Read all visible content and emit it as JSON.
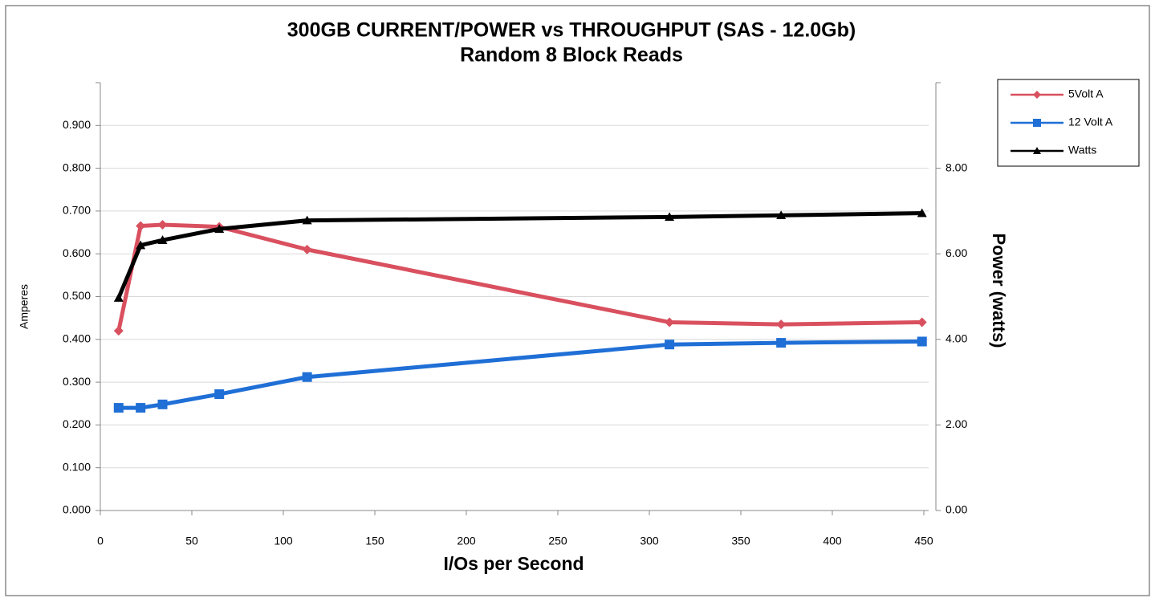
{
  "chart_data": {
    "type": "line",
    "title": "300GB CURRENT/POWER vs THROUGHPUT (SAS - 12.0Gb)",
    "subtitle": "Random 8 Block Reads",
    "x_label": "I/Os per Second",
    "y_label": "Amperes",
    "y2_label": "Power (watts)",
    "x": [
      10,
      22,
      34,
      65,
      113,
      311,
      372,
      449
    ],
    "series": [
      {
        "name": "5Volt A",
        "color": "#d9505f",
        "marker": "diamond",
        "values": [
          0.42,
          0.665,
          0.668,
          0.663,
          0.61,
          0.44,
          0.435,
          0.44
        ]
      },
      {
        "name": "12 Volt A",
        "color": "#1f6fd6",
        "marker": "square",
        "values": [
          0.24,
          0.24,
          0.248,
          0.272,
          0.312,
          0.388,
          0.392,
          0.395
        ]
      },
      {
        "name": "Watts",
        "color": "#000000",
        "marker": "triangle",
        "axis": "y2",
        "values": [
          4.97,
          6.2,
          6.32,
          6.58,
          6.78,
          6.86,
          6.9,
          6.95
        ]
      }
    ],
    "xlim": [
      0,
      450
    ],
    "xticks": [
      0,
      50,
      100,
      150,
      200,
      250,
      300,
      350,
      400,
      450
    ],
    "ylim": [
      0,
      1.0
    ],
    "yticks": [
      {
        "value": 0,
        "label": "0.000"
      },
      {
        "value": 0.1,
        "label": "0.100"
      },
      {
        "value": 0.2,
        "label": "0.200"
      },
      {
        "value": 0.3,
        "label": "0.300"
      },
      {
        "value": 0.4,
        "label": "0.400"
      },
      {
        "value": 0.5,
        "label": "0.500"
      },
      {
        "value": 0.6,
        "label": "0.600"
      },
      {
        "value": 0.7,
        "label": "0.700"
      },
      {
        "value": 0.8,
        "label": "0.800"
      },
      {
        "value": 0.9,
        "label": "0.900"
      }
    ],
    "y2lim": [
      0,
      10
    ],
    "y2ticks": [
      {
        "value": 0,
        "label": "0.00"
      },
      {
        "value": 2,
        "label": "2.00"
      },
      {
        "value": 4,
        "label": "4.00"
      },
      {
        "value": 6,
        "label": "6.00"
      },
      {
        "value": 8,
        "label": "8.00"
      }
    ],
    "grid": true,
    "legend": "upper right"
  }
}
